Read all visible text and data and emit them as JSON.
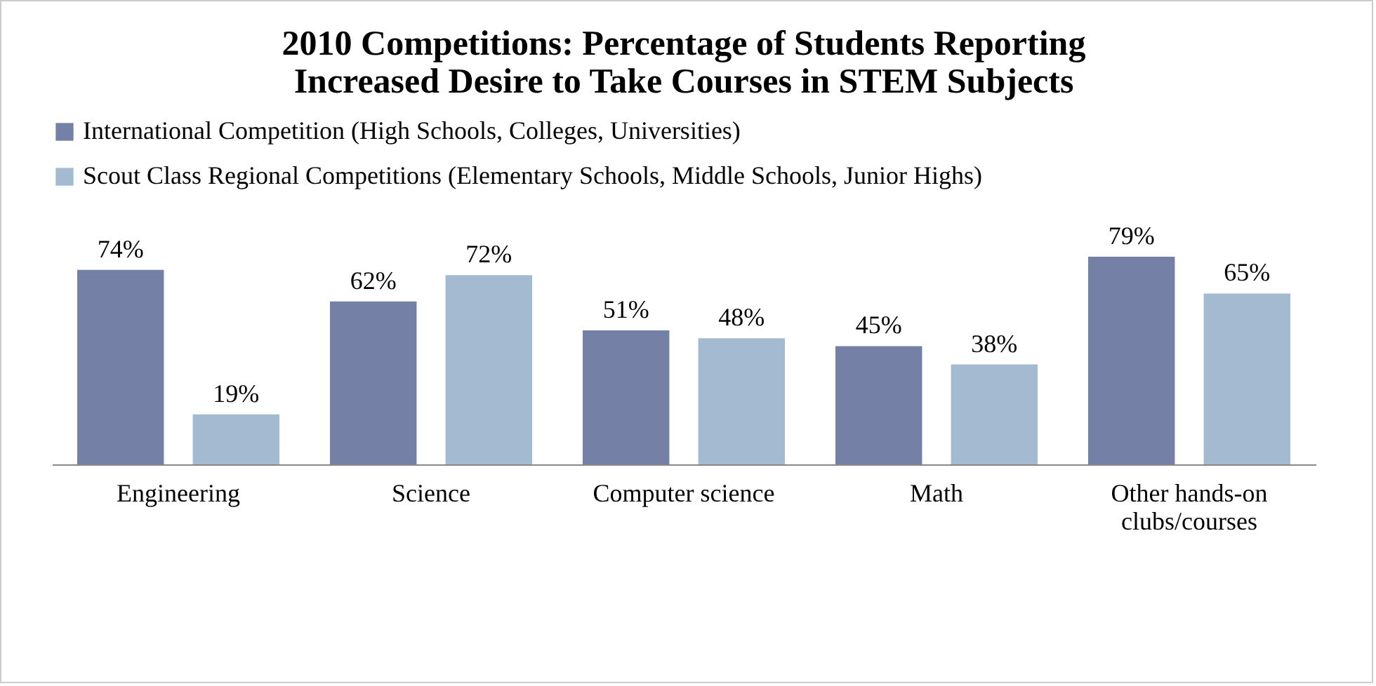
{
  "chart_data": {
    "type": "bar",
    "title": "2010 Competitions: Percentage of Students Reporting Increased Desire to Take Courses in STEM Subjects",
    "categories": [
      "Engineering",
      "Science",
      "Computer science",
      "Math",
      "Other hands-on clubs/courses"
    ],
    "series": [
      {
        "name": "International Competition (High Schools, Colleges, Universities)",
        "color": "#7480a6",
        "values": [
          74,
          62,
          51,
          45,
          79
        ],
        "value_labels": [
          "74%",
          "62%",
          "51%",
          "45%",
          "79%"
        ]
      },
      {
        "name": "Scout Class Regional Competitions (Elementary Schools, Middle Schools, Junior Highs)",
        "color": "#a3bad0",
        "values": [
          19,
          72,
          48,
          38,
          65
        ],
        "value_labels": [
          "19%",
          "72%",
          "48%",
          "38%",
          "65%"
        ]
      }
    ],
    "tick_labels": "x",
    "legend": "top left"
  }
}
